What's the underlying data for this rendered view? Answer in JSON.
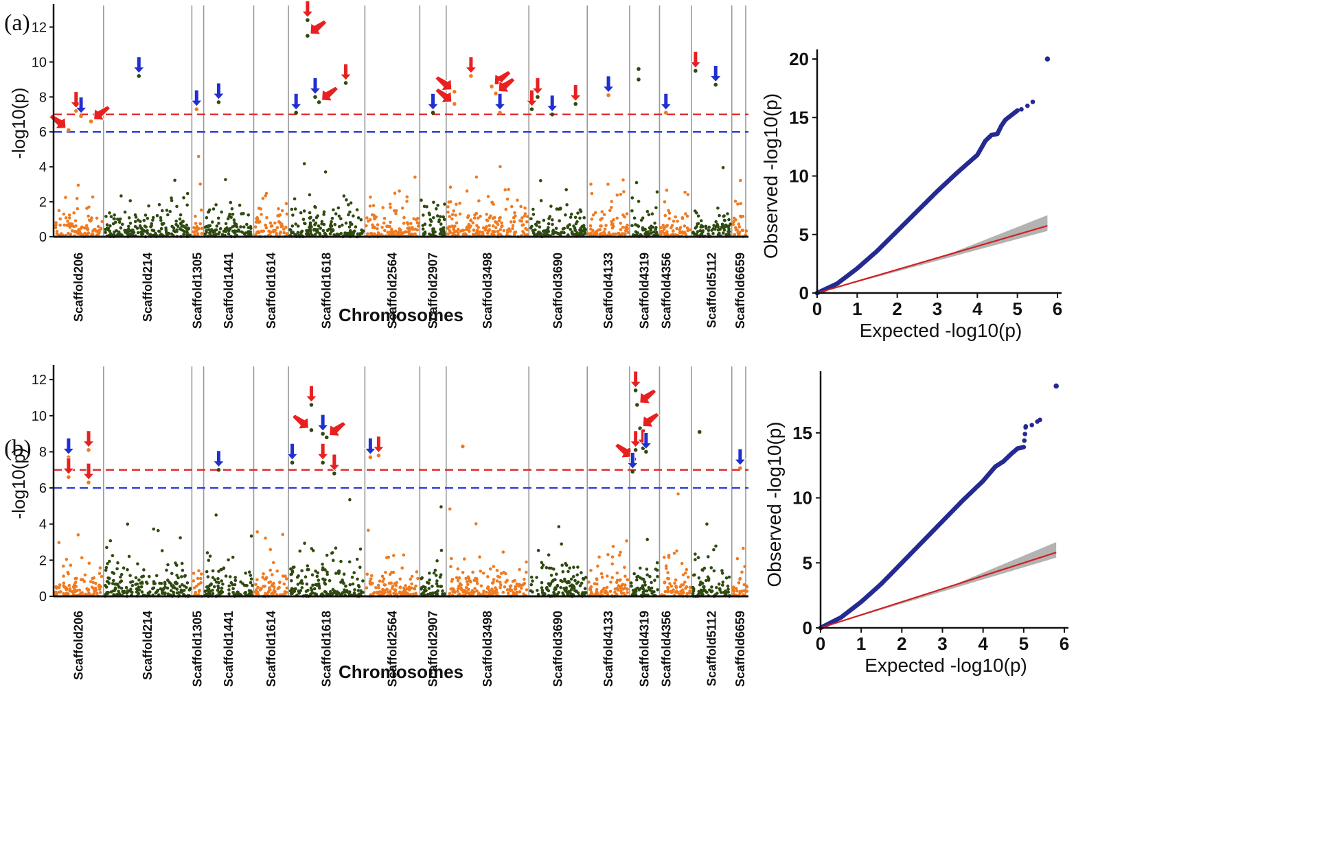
{
  "colors": {
    "orange": "#f07a20",
    "green": "#2f4a10",
    "red_line": "#e03030",
    "blue_line": "#3040e0",
    "arrow_red": "#e82020",
    "arrow_blue": "#2030d0",
    "qq_points": "#242a90",
    "qq_line": "#d02020",
    "band": "#a0a0a0",
    "separator": "#999999"
  },
  "panels": [
    {
      "label": "(a)",
      "manhattan": {
        "type": "scatter",
        "ylabel": "-log10(p)",
        "xlabel": "Chromosomes",
        "ylim": [
          0,
          13
        ],
        "yticks": [
          0,
          2,
          4,
          6,
          8,
          10,
          12
        ],
        "thresholds": [
          7,
          6
        ],
        "scaffolds": [
          "Scaffold206",
          "Scaffold214",
          "Scaffold1305",
          "Scaffold1441",
          "Scaffold1614",
          "Scaffold1618",
          "Scaffold2564",
          "Scaffold2907",
          "Scaffold3498",
          "Scaffold3690",
          "Scaffold4133",
          "Scaffold4319",
          "Scaffold4356",
          "Scaffold5112",
          "Scaffold6659"
        ],
        "significant": [
          {
            "scaffold": 0,
            "pos": 0.3,
            "p": 6.1,
            "arrow": "red",
            "dir": "right"
          },
          {
            "scaffold": 0,
            "pos": 0.45,
            "p": 7.2,
            "arrow": "red",
            "dir": "down"
          },
          {
            "scaffold": 0,
            "pos": 0.55,
            "p": 6.9,
            "arrow": "blue",
            "dir": "down"
          },
          {
            "scaffold": 0,
            "pos": 0.75,
            "p": 6.6,
            "arrow": "red",
            "dir": "left"
          },
          {
            "scaffold": 1,
            "pos": 0.4,
            "p": 9.2,
            "arrow": "blue",
            "dir": "down"
          },
          {
            "scaffold": 2,
            "pos": 0.4,
            "p": 7.3,
            "arrow": "blue",
            "dir": "down"
          },
          {
            "scaffold": 3,
            "pos": 0.3,
            "p": 7.7,
            "arrow": "blue",
            "dir": "down"
          },
          {
            "scaffold": 5,
            "pos": 0.1,
            "p": 7.1,
            "arrow": "blue",
            "dir": "down"
          },
          {
            "scaffold": 5,
            "pos": 0.25,
            "p": 12.4,
            "arrow": "red",
            "dir": "down"
          },
          {
            "scaffold": 5,
            "pos": 0.25,
            "p": 11.5,
            "arrow": "red",
            "dir": "left"
          },
          {
            "scaffold": 5,
            "pos": 0.35,
            "p": 8.0,
            "arrow": "blue",
            "dir": "down"
          },
          {
            "scaffold": 5,
            "pos": 0.4,
            "p": 7.7,
            "arrow": "red",
            "dir": "left"
          },
          {
            "scaffold": 5,
            "pos": 0.75,
            "p": 8.8,
            "arrow": "red",
            "dir": "down"
          },
          {
            "scaffold": 7,
            "pos": 0.5,
            "p": 7.1,
            "arrow": "blue",
            "dir": "down"
          },
          {
            "scaffold": 8,
            "pos": 0.1,
            "p": 8.3,
            "arrow": "red",
            "dir": "right"
          },
          {
            "scaffold": 8,
            "pos": 0.1,
            "p": 7.6,
            "arrow": "red",
            "dir": "right"
          },
          {
            "scaffold": 8,
            "pos": 0.3,
            "p": 9.2,
            "arrow": "red",
            "dir": "down"
          },
          {
            "scaffold": 8,
            "pos": 0.55,
            "p": 8.6,
            "arrow": "red",
            "dir": "left"
          },
          {
            "scaffold": 8,
            "pos": 0.6,
            "p": 8.2,
            "arrow": "red",
            "dir": "left"
          },
          {
            "scaffold": 8,
            "pos": 0.65,
            "p": 7.1,
            "arrow": "blue",
            "dir": "down"
          },
          {
            "scaffold": 9,
            "pos": 0.05,
            "p": 7.3,
            "arrow": "red",
            "dir": "down"
          },
          {
            "scaffold": 9,
            "pos": 0.15,
            "p": 8.0,
            "arrow": "red",
            "dir": "down"
          },
          {
            "scaffold": 9,
            "pos": 0.4,
            "p": 7.0,
            "arrow": "blue",
            "dir": "down"
          },
          {
            "scaffold": 9,
            "pos": 0.8,
            "p": 7.6,
            "arrow": "red",
            "dir": "down"
          },
          {
            "scaffold": 10,
            "pos": 0.5,
            "p": 8.1,
            "arrow": "blue",
            "dir": "down"
          },
          {
            "scaffold": 11,
            "pos": 0.3,
            "p": 9.0,
            "arrow": "",
            "dir": ""
          },
          {
            "scaffold": 11,
            "pos": 0.3,
            "p": 9.6,
            "arrow": "",
            "dir": ""
          },
          {
            "scaffold": 12,
            "pos": 0.2,
            "p": 7.1,
            "arrow": "blue",
            "dir": "down"
          },
          {
            "scaffold": 13,
            "pos": 0.1,
            "p": 9.5,
            "arrow": "red",
            "dir": "down"
          },
          {
            "scaffold": 13,
            "pos": 0.6,
            "p": 8.7,
            "arrow": "blue",
            "dir": "down"
          }
        ]
      },
      "qq": {
        "type": "scatter",
        "xlabel": "Expected -log10(p)",
        "ylabel": "Observed -log10(p)",
        "xlim": [
          0,
          6
        ],
        "ylim": [
          0,
          20
        ],
        "xticks": [
          0,
          1,
          2,
          3,
          4,
          5,
          6
        ],
        "yticks": [
          0,
          5,
          10,
          15,
          20
        ],
        "curve": [
          [
            0,
            0
          ],
          [
            0.5,
            0.8
          ],
          [
            1,
            2.1
          ],
          [
            1.5,
            3.6
          ],
          [
            2,
            5.3
          ],
          [
            2.5,
            7.0
          ],
          [
            3,
            8.7
          ],
          [
            3.5,
            10.3
          ],
          [
            4,
            11.8
          ],
          [
            4.2,
            13.0
          ],
          [
            4.35,
            13.5
          ],
          [
            4.5,
            13.6
          ],
          [
            4.6,
            14.3
          ],
          [
            4.7,
            14.8
          ],
          [
            4.85,
            15.2
          ],
          [
            5.0,
            15.6
          ],
          [
            5.1,
            15.7
          ],
          [
            5.25,
            16.0
          ],
          [
            5.45,
            16.5
          ]
        ],
        "outliers": [
          [
            5.75,
            20.0
          ]
        ],
        "expected_line_slope": 1.0,
        "band_half_width_at_max": 0.9
      }
    },
    {
      "label": "(b)",
      "manhattan": {
        "type": "scatter",
        "ylabel": "-log10(p)",
        "xlabel": "Chromosomes",
        "ylim": [
          0,
          12.5
        ],
        "yticks": [
          0,
          2,
          4,
          6,
          8,
          10,
          12
        ],
        "thresholds": [
          7,
          6
        ],
        "scaffolds": [
          "Scaffold206",
          "Scaffold214",
          "Scaffold1305",
          "Scaffold1441",
          "Scaffold1614",
          "Scaffold1618",
          "Scaffold2564",
          "Scaffold2907",
          "Scaffold3498",
          "Scaffold3690",
          "Scaffold4133",
          "Scaffold4319",
          "Scaffold4356",
          "Scaffold5112",
          "Scaffold6659"
        ],
        "significant": [
          {
            "scaffold": 0,
            "pos": 0.3,
            "p": 7.7,
            "arrow": "blue",
            "dir": "down"
          },
          {
            "scaffold": 0,
            "pos": 0.3,
            "p": 6.6,
            "arrow": "red",
            "dir": "down"
          },
          {
            "scaffold": 0,
            "pos": 0.7,
            "p": 8.1,
            "arrow": "red",
            "dir": "down"
          },
          {
            "scaffold": 0,
            "pos": 0.7,
            "p": 6.3,
            "arrow": "red",
            "dir": "down"
          },
          {
            "scaffold": 3,
            "pos": 0.3,
            "p": 7.0,
            "arrow": "blue",
            "dir": "down"
          },
          {
            "scaffold": 5,
            "pos": 0.05,
            "p": 7.4,
            "arrow": "blue",
            "dir": "down"
          },
          {
            "scaffold": 5,
            "pos": 0.3,
            "p": 10.6,
            "arrow": "red",
            "dir": "down"
          },
          {
            "scaffold": 5,
            "pos": 0.3,
            "p": 9.2,
            "arrow": "red",
            "dir": "right"
          },
          {
            "scaffold": 5,
            "pos": 0.45,
            "p": 9.0,
            "arrow": "blue",
            "dir": "down"
          },
          {
            "scaffold": 5,
            "pos": 0.5,
            "p": 8.8,
            "arrow": "red",
            "dir": "left"
          },
          {
            "scaffold": 5,
            "pos": 0.45,
            "p": 7.4,
            "arrow": "red",
            "dir": "down"
          },
          {
            "scaffold": 5,
            "pos": 0.6,
            "p": 6.8,
            "arrow": "red",
            "dir": "down"
          },
          {
            "scaffold": 6,
            "pos": 0.1,
            "p": 7.7,
            "arrow": "blue",
            "dir": "down"
          },
          {
            "scaffold": 6,
            "pos": 0.25,
            "p": 7.8,
            "arrow": "red",
            "dir": "down"
          },
          {
            "scaffold": 8,
            "pos": 0.2,
            "p": 8.3,
            "arrow": "",
            "dir": ""
          },
          {
            "scaffold": 11,
            "pos": 0.2,
            "p": 11.4,
            "arrow": "red",
            "dir": "down"
          },
          {
            "scaffold": 11,
            "pos": 0.25,
            "p": 10.6,
            "arrow": "red",
            "dir": "left"
          },
          {
            "scaffold": 11,
            "pos": 0.35,
            "p": 9.3,
            "arrow": "red",
            "dir": "left"
          },
          {
            "scaffold": 11,
            "pos": 0.2,
            "p": 8.1,
            "arrow": "red",
            "dir": "down"
          },
          {
            "scaffold": 11,
            "pos": 0.15,
            "p": 7.6,
            "arrow": "red",
            "dir": "right"
          },
          {
            "scaffold": 11,
            "pos": 0.45,
            "p": 8.2,
            "arrow": "red",
            "dir": "down"
          },
          {
            "scaffold": 11,
            "pos": 0.55,
            "p": 8.0,
            "arrow": "blue",
            "dir": "down"
          },
          {
            "scaffold": 11,
            "pos": 0.1,
            "p": 6.9,
            "arrow": "blue",
            "dir": "down"
          },
          {
            "scaffold": 13,
            "pos": 0.2,
            "p": 9.1,
            "arrow": "",
            "dir": ""
          },
          {
            "scaffold": 14,
            "pos": 0.5,
            "p": 7.1,
            "arrow": "blue",
            "dir": "down"
          }
        ]
      },
      "qq": {
        "type": "scatter",
        "xlabel": "Expected -log10(p)",
        "ylabel": "Observed -log10(p)",
        "xlim": [
          0,
          6
        ],
        "ylim": [
          0,
          19
        ],
        "xticks": [
          0,
          1,
          2,
          3,
          4,
          5,
          6
        ],
        "yticks": [
          0,
          5,
          10,
          15
        ],
        "curve": [
          [
            0,
            0
          ],
          [
            0.5,
            0.8
          ],
          [
            1,
            2.0
          ],
          [
            1.5,
            3.4
          ],
          [
            2,
            5.0
          ],
          [
            2.5,
            6.6
          ],
          [
            3,
            8.2
          ],
          [
            3.5,
            9.8
          ],
          [
            4,
            11.3
          ],
          [
            4.3,
            12.4
          ],
          [
            4.5,
            12.8
          ],
          [
            4.7,
            13.4
          ],
          [
            4.85,
            13.8
          ],
          [
            5.0,
            13.9
          ],
          [
            5.05,
            15.5
          ],
          [
            5.2,
            15.6
          ],
          [
            5.4,
            16.0
          ],
          [
            5.5,
            16.4
          ]
        ],
        "outliers": [
          [
            5.8,
            18.6
          ]
        ],
        "expected_line_slope": 1.0,
        "band_half_width_at_max": 0.8
      }
    }
  ]
}
